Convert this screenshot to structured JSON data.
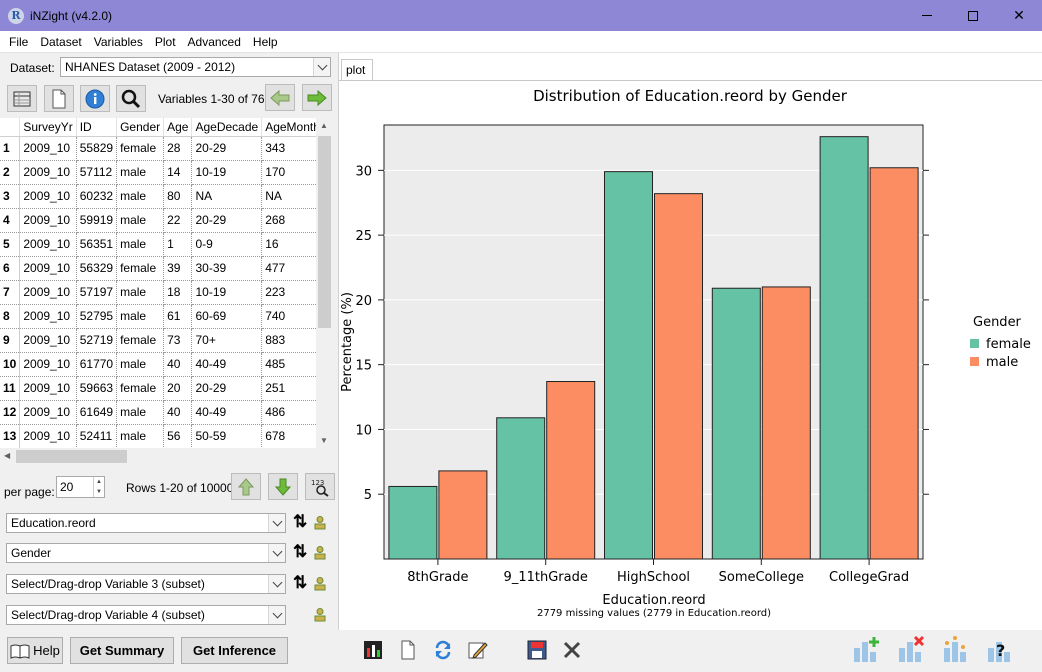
{
  "window": {
    "title": "iNZight (v4.2.0)",
    "icon_letter": "R"
  },
  "menu": [
    "File",
    "Dataset",
    "Variables",
    "Plot",
    "Advanced",
    "Help"
  ],
  "dataset": {
    "label": "Dataset:",
    "selected": "NHANES Dataset (2009 - 2012)"
  },
  "toolbar": {
    "icons": [
      "grid-view-icon",
      "list-view-icon",
      "info-icon",
      "search-icon"
    ],
    "variables_label": "Variables 1-30 of 76"
  },
  "table": {
    "columns": [
      "SurveyYr",
      "ID",
      "Gender",
      "Age",
      "AgeDecade",
      "AgeMonths"
    ],
    "rows": [
      [
        "1",
        "2009_10",
        "55829",
        "female",
        "28",
        "20-29",
        "343"
      ],
      [
        "2",
        "2009_10",
        "57112",
        "male",
        "14",
        "10-19",
        "170"
      ],
      [
        "3",
        "2009_10",
        "60232",
        "male",
        "80",
        "NA",
        "NA"
      ],
      [
        "4",
        "2009_10",
        "59919",
        "male",
        "22",
        "20-29",
        "268"
      ],
      [
        "5",
        "2009_10",
        "56351",
        "male",
        "1",
        "0-9",
        "16"
      ],
      [
        "6",
        "2009_10",
        "56329",
        "female",
        "39",
        "30-39",
        "477"
      ],
      [
        "7",
        "2009_10",
        "57197",
        "male",
        "18",
        "10-19",
        "223"
      ],
      [
        "8",
        "2009_10",
        "52795",
        "male",
        "61",
        "60-69",
        "740"
      ],
      [
        "9",
        "2009_10",
        "52719",
        "female",
        "73",
        "70+",
        "883"
      ],
      [
        "10",
        "2009_10",
        "61770",
        "male",
        "40",
        "40-49",
        "485"
      ],
      [
        "11",
        "2009_10",
        "59663",
        "female",
        "20",
        "20-29",
        "251"
      ],
      [
        "12",
        "2009_10",
        "61649",
        "male",
        "40",
        "40-49",
        "486"
      ],
      [
        "13",
        "2009_10",
        "52411",
        "male",
        "56",
        "50-59",
        "678"
      ]
    ]
  },
  "paging": {
    "per_page_label": "per page:",
    "per_page": "20",
    "rows_label": "Rows 1-20 of 10000"
  },
  "variables": {
    "v1": "Education.reord",
    "v2": "Gender",
    "v3": "Select/Drag-drop Variable 3 (subset)",
    "v4": "Select/Drag-drop Variable 4 (subset)"
  },
  "plot_tab": {
    "label": "plot"
  },
  "bottom": {
    "help_label": "Help",
    "summary_label": "Get Summary",
    "inference_label": "Get Inference"
  },
  "colors": {
    "female": "#66c2a5",
    "male": "#fc8d62",
    "titlebar": "#8e87d6"
  },
  "chart_data": {
    "type": "bar",
    "title": "Distribution of Education.reord by Gender",
    "xlabel": "Education.reord",
    "ylabel": "Percentage (%)",
    "subtitle": "2779 missing values (2779 in Education.reord)",
    "categories": [
      "8thGrade",
      "9_11thGrade",
      "HighSchool",
      "SomeCollege",
      "CollegeGrad"
    ],
    "series": [
      {
        "name": "female",
        "values": [
          5.6,
          10.9,
          29.9,
          20.9,
          32.6
        ]
      },
      {
        "name": "male",
        "values": [
          6.8,
          13.7,
          28.2,
          21.0,
          30.2
        ]
      }
    ],
    "yticks": [
      5,
      10,
      15,
      20,
      25,
      30
    ],
    "ylim": [
      0,
      33.5
    ],
    "legend": {
      "title": "Gender",
      "position": "right"
    },
    "grid": true
  }
}
